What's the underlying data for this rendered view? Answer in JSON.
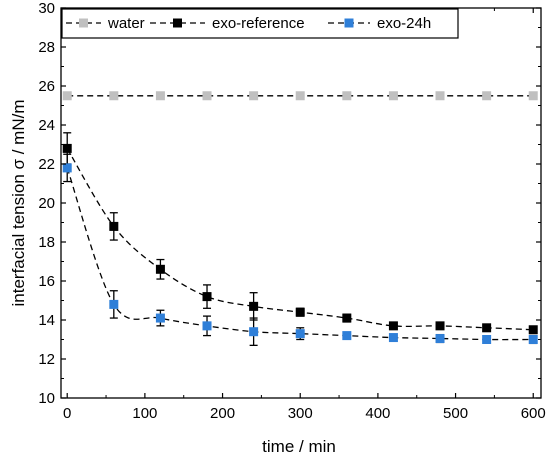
{
  "chart_data": {
    "type": "line",
    "xlabel": "time / min",
    "ylabel": "interfacial tension σ / mN/m",
    "xlim": [
      -8,
      610
    ],
    "ylim": [
      10,
      30
    ],
    "xticks": [
      0,
      100,
      200,
      300,
      400,
      500,
      600
    ],
    "yticks": [
      10,
      12,
      14,
      16,
      18,
      20,
      22,
      24,
      26,
      28,
      30
    ],
    "grid": false,
    "legend_position": "top",
    "series": [
      {
        "name": "water",
        "color": "#c0c0c0",
        "marker": "square",
        "line_style": "dashed",
        "x": [
          0,
          60,
          120,
          180,
          240,
          300,
          360,
          420,
          480,
          540,
          600
        ],
        "y": [
          25.5,
          25.5,
          25.5,
          25.5,
          25.5,
          25.5,
          25.5,
          25.5,
          25.5,
          25.5,
          25.5
        ],
        "error": [
          0,
          0,
          0,
          0,
          0,
          0,
          0,
          0,
          0,
          0,
          0
        ]
      },
      {
        "name": "exo-reference",
        "color": "#000000",
        "marker": "square",
        "line_style": "dashed",
        "x": [
          0,
          60,
          120,
          180,
          240,
          300,
          360,
          420,
          480,
          540,
          600
        ],
        "y": [
          22.8,
          18.8,
          16.6,
          15.2,
          14.7,
          14.4,
          14.1,
          13.7,
          13.7,
          13.6,
          13.5
        ],
        "error": [
          0.8,
          0.7,
          0.5,
          0.6,
          0.7,
          0.2,
          0.2,
          0.15,
          0.15,
          0.15,
          0.15
        ]
      },
      {
        "name": "exo-24h",
        "color": "#2f7fd8",
        "marker": "square",
        "line_style": "dashed",
        "x": [
          0,
          60,
          120,
          180,
          240,
          300,
          360,
          420,
          480,
          540,
          600
        ],
        "y": [
          21.8,
          14.8,
          14.1,
          13.7,
          13.4,
          13.3,
          13.2,
          13.1,
          13.05,
          13.0,
          13.0
        ],
        "error": [
          0.7,
          0.7,
          0.4,
          0.5,
          0.7,
          0.3,
          0.15,
          0.15,
          0.2,
          0.15,
          0.2
        ]
      }
    ]
  }
}
